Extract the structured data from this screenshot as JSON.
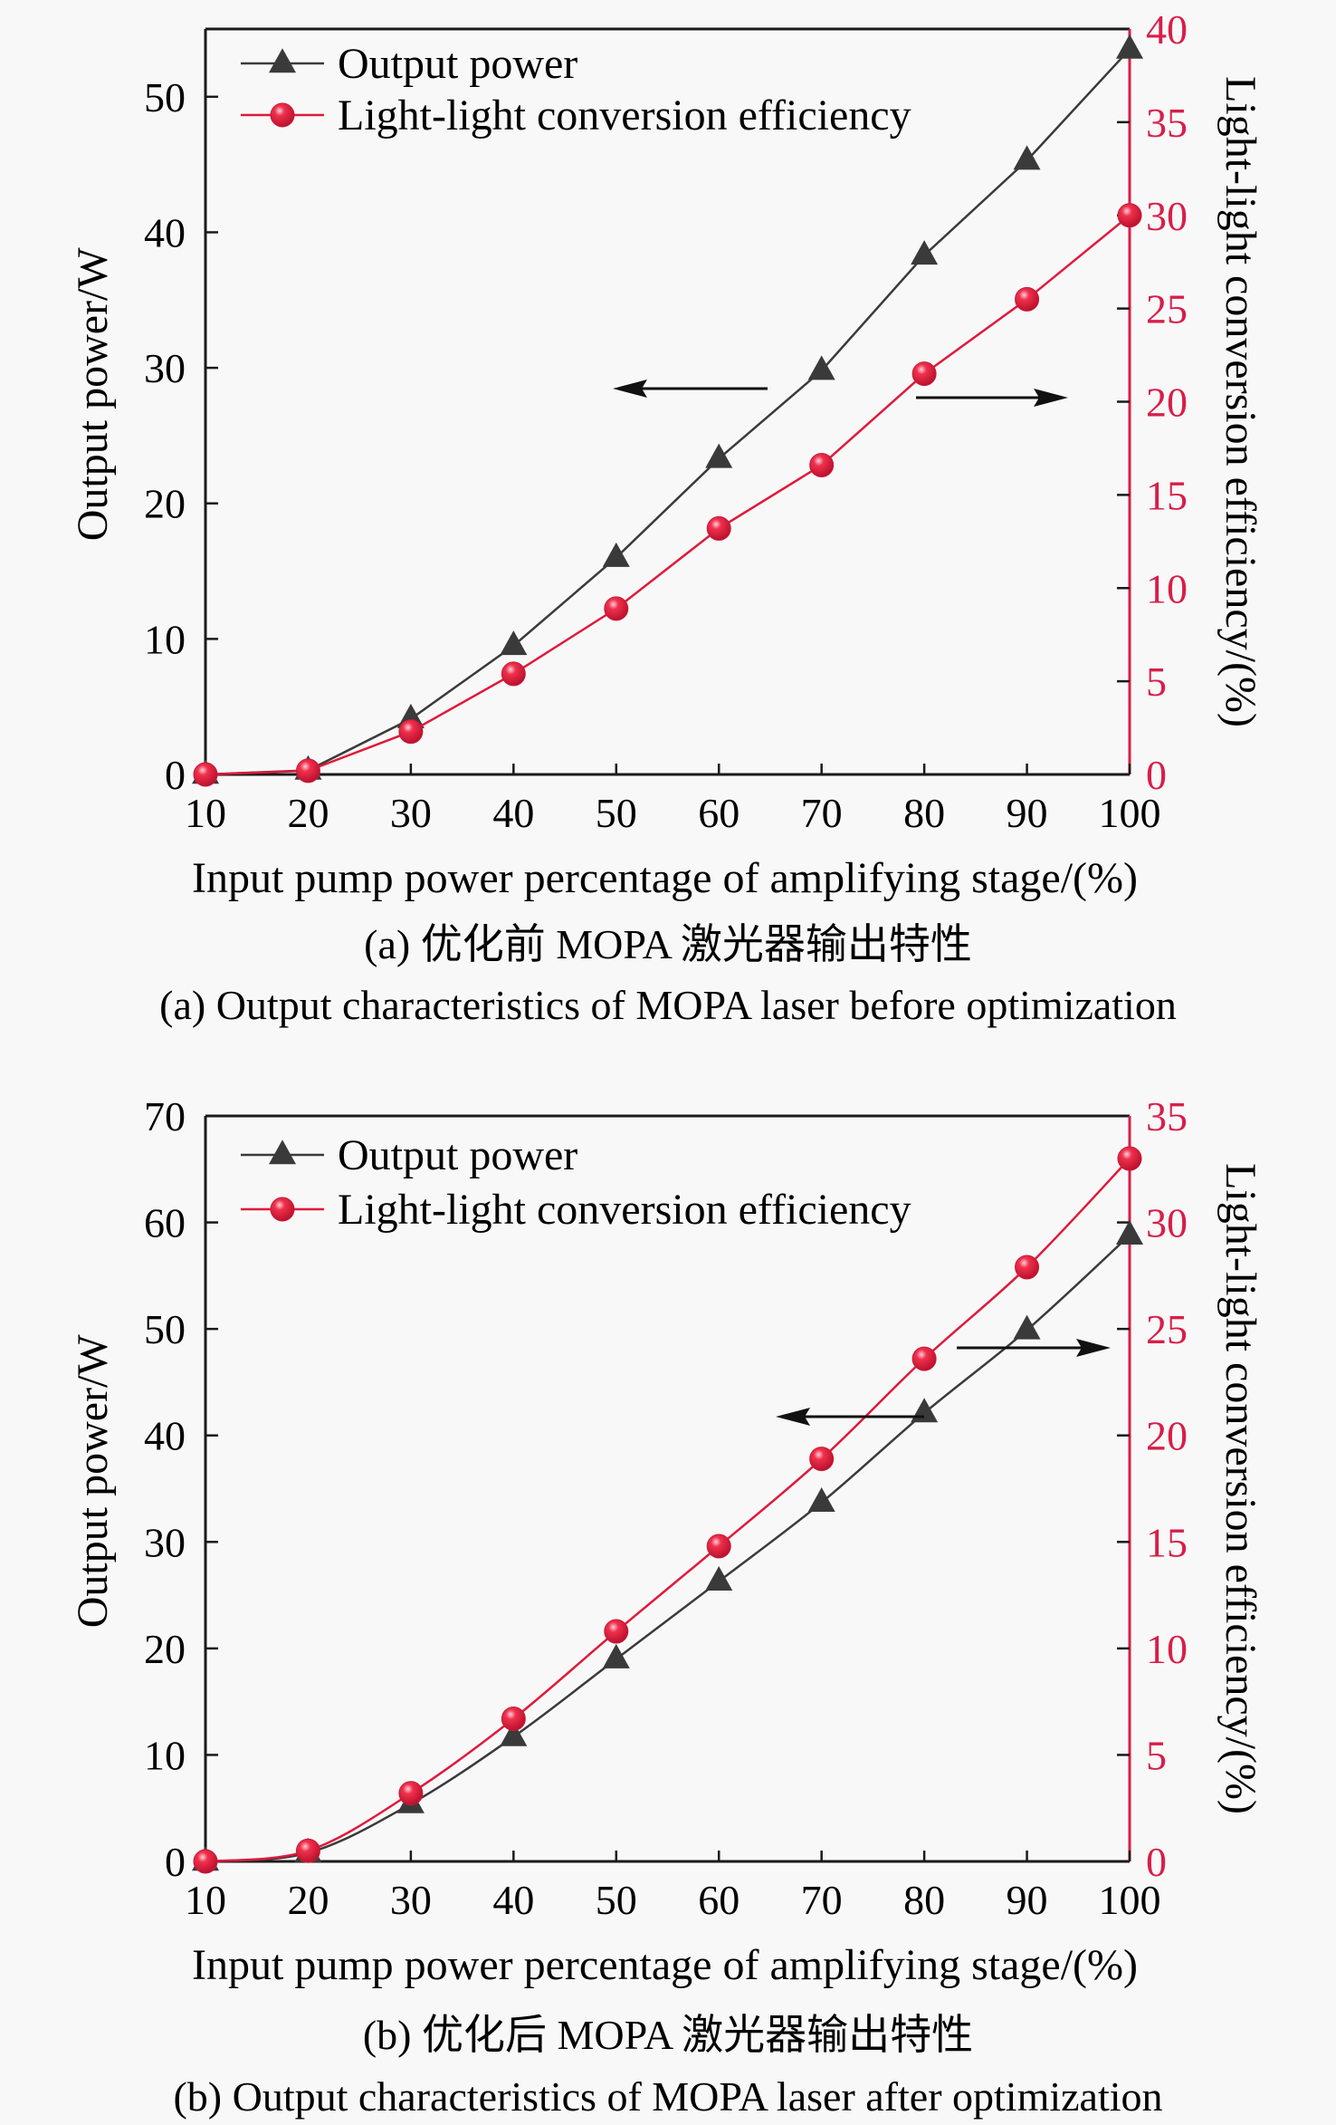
{
  "colors": {
    "power_series": "#3a3a3a",
    "efficiency_series": "#e0193a",
    "right_axis": "#d81e48",
    "axis": "#1a1a1a",
    "background": "#f8f8f8"
  },
  "chart_data": [
    {
      "id": "a",
      "type": "line",
      "title": "",
      "xlabel": "Input pump power percentage of amplifying stage/(%)",
      "ylabel": "Output power/W",
      "y2label": "Light-light conversion efficiency/(%)",
      "x": [
        10,
        20,
        30,
        40,
        50,
        60,
        70,
        80,
        90,
        100
      ],
      "xlim": [
        10,
        100
      ],
      "ylim": [
        0,
        55
      ],
      "y2lim": [
        0,
        40
      ],
      "xticks": [
        10,
        20,
        30,
        40,
        50,
        60,
        70,
        80,
        90,
        100
      ],
      "yticks": [
        0,
        10,
        20,
        30,
        40,
        50
      ],
      "y2ticks": [
        0,
        5,
        10,
        15,
        20,
        25,
        30,
        35,
        40
      ],
      "smooth": false,
      "grid": false,
      "legend_position": "top-left",
      "series": [
        {
          "name": "Output power",
          "axis": "left",
          "marker": "triangle",
          "values": [
            0,
            0.3,
            4.1,
            9.5,
            16.0,
            23.3,
            29.8,
            38.3,
            45.3,
            53.5
          ]
        },
        {
          "name": "Light-light conversion efficiency",
          "axis": "right",
          "marker": "circle",
          "values": [
            0,
            0.2,
            2.3,
            5.4,
            8.9,
            13.2,
            16.6,
            21.5,
            25.5,
            30.0
          ]
        }
      ],
      "annotations": [
        {
          "type": "arrow",
          "direction": "left",
          "meaning": "Output power uses left axis"
        },
        {
          "type": "arrow",
          "direction": "right",
          "meaning": "Efficiency uses right axis"
        }
      ],
      "caption_cn": "(a) 优化前 MOPA 激光器输出特性",
      "caption_en": "(a) Output characteristics of MOPA laser before optimization"
    },
    {
      "id": "b",
      "type": "line",
      "title": "",
      "xlabel": "Input pump power percentage of amplifying stage/(%)",
      "ylabel": "Output power/W",
      "y2label": "Light-light conversion efficiency/(%)",
      "x": [
        10,
        20,
        30,
        40,
        50,
        60,
        70,
        80,
        90,
        100
      ],
      "xlim": [
        10,
        100
      ],
      "ylim": [
        0,
        70
      ],
      "y2lim": [
        0,
        35
      ],
      "xticks": [
        10,
        20,
        30,
        40,
        50,
        60,
        70,
        80,
        90,
        100
      ],
      "yticks": [
        0,
        10,
        20,
        30,
        40,
        50,
        60,
        70
      ],
      "y2ticks": [
        0,
        5,
        10,
        15,
        20,
        25,
        30,
        35
      ],
      "smooth": true,
      "grid": false,
      "legend_position": "top-left",
      "series": [
        {
          "name": "Output power",
          "axis": "left",
          "marker": "triangle",
          "values": [
            0,
            0.8,
            5.4,
            11.7,
            19.0,
            26.3,
            33.7,
            42.1,
            49.9,
            58.8
          ]
        },
        {
          "name": "Light-light conversion efficiency",
          "axis": "right",
          "marker": "circle",
          "values": [
            0,
            0.5,
            3.2,
            6.7,
            10.8,
            14.8,
            18.9,
            23.6,
            27.9,
            33.0
          ]
        }
      ],
      "annotations": [
        {
          "type": "arrow",
          "direction": "left",
          "meaning": "Output power uses left axis"
        },
        {
          "type": "arrow",
          "direction": "right",
          "meaning": "Efficiency uses right axis"
        }
      ],
      "caption_cn": "(b) 优化后 MOPA 激光器输出特性",
      "caption_en": "(b) Output characteristics of MOPA laser after optimization"
    }
  ]
}
